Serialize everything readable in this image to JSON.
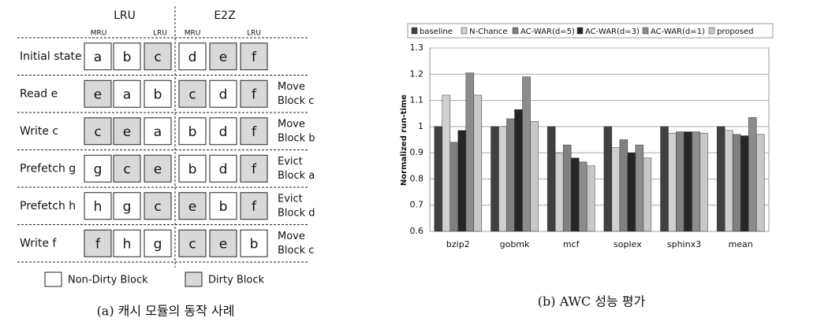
{
  "diagram": {
    "headers": [
      "LRU",
      "E2Z"
    ],
    "sub_headers": [
      "MRU",
      "LRU",
      "MRU",
      "LRU"
    ],
    "rows": [
      {
        "label": "Initial state",
        "cells": [
          {
            "text": "a",
            "dirty": false
          },
          {
            "text": "b",
            "dirty": false
          },
          {
            "text": "c",
            "dirty": true
          },
          {
            "text": "d",
            "dirty": false
          },
          {
            "text": "e",
            "dirty": true
          },
          {
            "text": "f",
            "dirty": true
          }
        ]
      },
      {
        "label": "Read e",
        "cells": [
          {
            "text": "e",
            "dirty": true
          },
          {
            "text": "a",
            "dirty": false
          },
          {
            "text": "b",
            "dirty": false
          },
          {
            "text": "c",
            "dirty": true
          },
          {
            "text": "d",
            "dirty": false
          },
          {
            "text": "f",
            "dirty": true
          }
        ],
        "note": [
          "Move",
          "Block c"
        ]
      },
      {
        "label": "Write c",
        "cells": [
          {
            "text": "c",
            "dirty": true
          },
          {
            "text": "e",
            "dirty": true
          },
          {
            "text": "a",
            "dirty": false
          },
          {
            "text": "b",
            "dirty": false
          },
          {
            "text": "d",
            "dirty": false
          },
          {
            "text": "f",
            "dirty": true
          }
        ],
        "note": [
          "Move",
          "Block b"
        ]
      },
      {
        "label": "Prefetch g",
        "cells": [
          {
            "text": "g",
            "dirty": false
          },
          {
            "text": "c",
            "dirty": true
          },
          {
            "text": "e",
            "dirty": true
          },
          {
            "text": "b",
            "dirty": false
          },
          {
            "text": "d",
            "dirty": false
          },
          {
            "text": "f",
            "dirty": true
          }
        ],
        "note": [
          "Evict",
          "Block a"
        ]
      },
      {
        "label": "Prefetch h",
        "cells": [
          {
            "text": "h",
            "dirty": false
          },
          {
            "text": "g",
            "dirty": false
          },
          {
            "text": "c",
            "dirty": true
          },
          {
            "text": "e",
            "dirty": true
          },
          {
            "text": "b",
            "dirty": false
          },
          {
            "text": "f",
            "dirty": true
          }
        ],
        "note": [
          "Evict",
          "Block d"
        ]
      },
      {
        "label": "Write f",
        "cells": [
          {
            "text": "f",
            "dirty": true
          },
          {
            "text": "h",
            "dirty": false
          },
          {
            "text": "g",
            "dirty": false
          },
          {
            "text": "c",
            "dirty": true
          },
          {
            "text": "e",
            "dirty": true
          },
          {
            "text": "b",
            "dirty": false
          }
        ],
        "note": [
          "Move",
          "Block c"
        ]
      }
    ],
    "legend": {
      "clean": "Non-Dirty Block",
      "dirty": "Dirty Block"
    },
    "caption": "(a) 캐시 모듈의 동작 사례"
  },
  "chart_data": {
    "type": "bar",
    "caption": "(b) AWC 성능 평가",
    "y_label": "Normalized run-time",
    "categories": [
      "bzip2",
      "gobmk",
      "mcf",
      "soplex",
      "sphinx3",
      "mean"
    ],
    "series": [
      {
        "name": "baseline",
        "color": "#404040",
        "values": [
          1.0,
          1.0,
          1.0,
          1.0,
          1.0,
          1.0
        ]
      },
      {
        "name": "N-Chance",
        "color": "#d0d0d0",
        "values": [
          1.12,
          1.0,
          0.9,
          0.92,
          0.975,
          0.985
        ]
      },
      {
        "name": "AC-WAR(d=5)",
        "color": "#808080",
        "values": [
          0.94,
          1.03,
          0.93,
          0.95,
          0.98,
          0.97
        ]
      },
      {
        "name": "AC-WAR(d=3)",
        "color": "#262626",
        "values": [
          0.985,
          1.065,
          0.88,
          0.9,
          0.98,
          0.965
        ]
      },
      {
        "name": "AC-WAR(d=1)",
        "color": "#8c8c8c",
        "values": [
          1.205,
          1.19,
          0.865,
          0.93,
          0.98,
          1.035
        ]
      },
      {
        "name": "proposed",
        "color": "#c8c8c8",
        "values": [
          1.12,
          1.02,
          0.85,
          0.88,
          0.975,
          0.97
        ]
      }
    ],
    "ylim": [
      0.6,
      1.3
    ],
    "yticks": [
      0.6,
      0.7,
      0.8,
      0.9,
      1,
      1.1,
      1.2,
      1.3
    ],
    "grid": true
  }
}
